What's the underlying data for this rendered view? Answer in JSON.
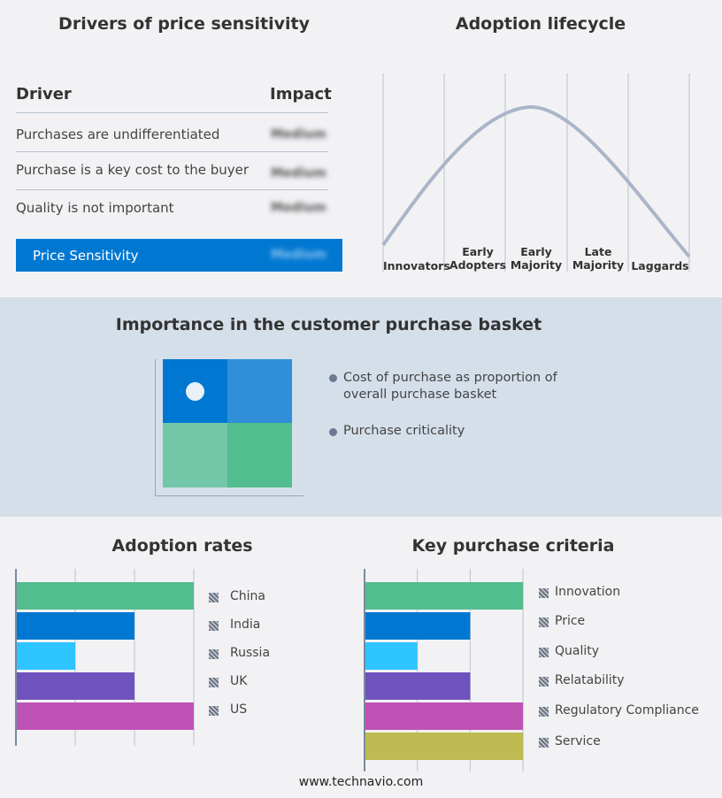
{
  "drivers": {
    "title": "Drivers of price sensitivity",
    "col_driver": "Driver",
    "col_impact": "Impact",
    "rows": [
      {
        "driver": "Purchases are undifferentiated",
        "impact": "Medium"
      },
      {
        "driver": "Purchase is a key cost to the buyer",
        "impact": "Medium"
      },
      {
        "driver": "Quality is not important",
        "impact": "Medium"
      }
    ],
    "summary": {
      "label": "Price Sensitivity",
      "impact": "Medium"
    }
  },
  "lifecycle": {
    "title": "Adoption lifecycle",
    "stages": [
      "Innovators",
      "Early Adopters",
      "Early Majority",
      "Late Majority",
      "Laggards"
    ]
  },
  "basket": {
    "title": "Importance in the customer purchase basket",
    "legend": [
      "Cost of purchase as proportion of overall purchase basket",
      "Purchase criticality"
    ],
    "colors": [
      "#0078d2",
      "#2f8fd8",
      "#74c6a8",
      "#52bd8e"
    ]
  },
  "chart_data": [
    {
      "type": "bar",
      "title": "Adoption rates",
      "categories": [
        "China",
        "India",
        "Russia",
        "UK",
        "US"
      ],
      "values": [
        3,
        2,
        1,
        2,
        3
      ],
      "colors": [
        "#52bd8e",
        "#0078d2",
        "#2ec4ff",
        "#6f52bd",
        "#bf52b5"
      ],
      "xlim": [
        0,
        3
      ],
      "grid": true,
      "legend": "right"
    },
    {
      "type": "bar",
      "title": "Key purchase criteria",
      "categories": [
        "Innovation",
        "Price",
        "Quality",
        "Relatability",
        "Regulatory Compliance",
        "Service"
      ],
      "values": [
        3,
        2,
        1,
        2,
        3,
        3
      ],
      "colors": [
        "#52bd8e",
        "#0078d2",
        "#2ec4ff",
        "#6f52bd",
        "#bf52b5",
        "#bfba52"
      ],
      "xlim": [
        0,
        3
      ],
      "grid": true,
      "legend": "right"
    }
  ],
  "footer": "www.technavio.com"
}
